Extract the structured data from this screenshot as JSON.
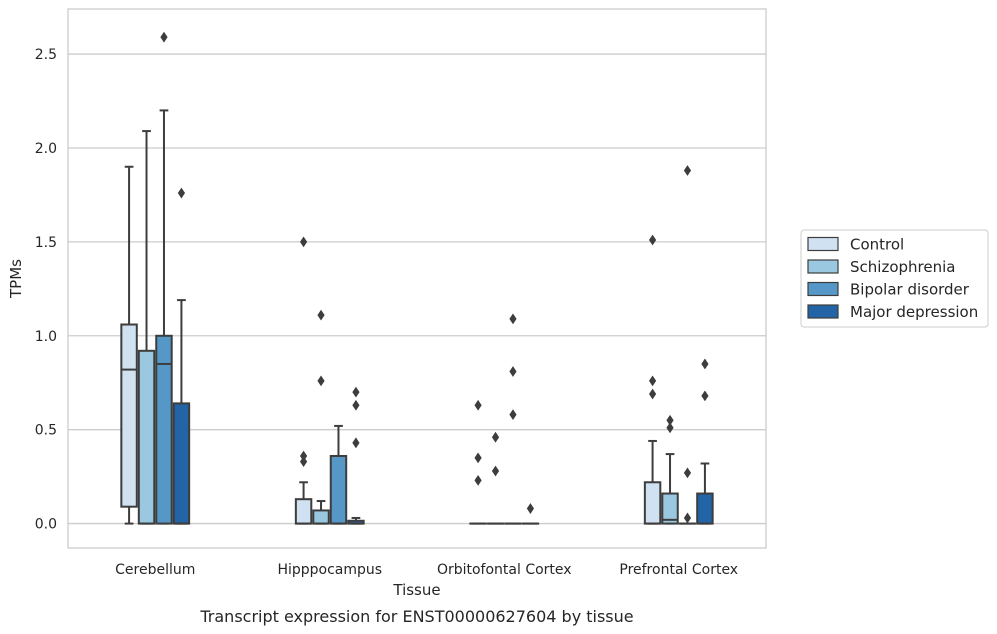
{
  "chart_data": {
    "type": "box",
    "xlabel": "Tissue",
    "ylabel": "TPMs",
    "caption": "Transcript expression for ENST00000627604 by tissue",
    "ylim": [
      -0.13,
      2.74
    ],
    "yticks": [
      0.0,
      0.5,
      1.0,
      1.5,
      2.0,
      2.5
    ],
    "ytick_labels": [
      "0.0",
      "0.5",
      "1.0",
      "1.5",
      "2.0",
      "2.5"
    ],
    "grid": "horizontal",
    "legend_position": "right",
    "categories": [
      "Cerebellum",
      "Hipppocampus",
      "Orbitofontal Cortex",
      "Prefrontal Cortex"
    ],
    "series": [
      {
        "name": "Control",
        "color": "#d0e1f2",
        "boxes": [
          {
            "q1": 0.09,
            "median": 0.82,
            "q3": 1.06,
            "whisker_low": 0.0,
            "whisker_high": 1.9,
            "outliers": []
          },
          {
            "q1": 0.0,
            "median": 0.0,
            "q3": 0.13,
            "whisker_low": 0.0,
            "whisker_high": 0.22,
            "outliers": [
              1.5,
              0.36,
              0.33
            ]
          },
          {
            "q1": 0.0,
            "median": 0.0,
            "q3": 0.0,
            "whisker_low": 0.0,
            "whisker_high": 0.0,
            "outliers": [
              0.63,
              0.35,
              0.23
            ]
          },
          {
            "q1": 0.0,
            "median": 0.0,
            "q3": 0.22,
            "whisker_low": 0.0,
            "whisker_high": 0.44,
            "outliers": [
              1.51,
              0.76,
              0.69
            ]
          }
        ]
      },
      {
        "name": "Schizophrenia",
        "color": "#9ac8e0",
        "boxes": [
          {
            "q1": 0.0,
            "median": 0.0,
            "q3": 0.92,
            "whisker_low": 0.0,
            "whisker_high": 2.09,
            "outliers": []
          },
          {
            "q1": 0.0,
            "median": 0.0,
            "q3": 0.07,
            "whisker_low": 0.0,
            "whisker_high": 0.12,
            "outliers": [
              1.11,
              0.76
            ]
          },
          {
            "q1": 0.0,
            "median": 0.0,
            "q3": 0.0,
            "whisker_low": 0.0,
            "whisker_high": 0.0,
            "outliers": [
              0.46,
              0.28
            ]
          },
          {
            "q1": 0.0,
            "median": 0.02,
            "q3": 0.16,
            "whisker_low": 0.0,
            "whisker_high": 0.37,
            "outliers": [
              0.55,
              0.51
            ]
          }
        ]
      },
      {
        "name": "Bipolar disorder",
        "color": "#5597c7",
        "boxes": [
          {
            "q1": 0.0,
            "median": 0.85,
            "q3": 1.0,
            "whisker_low": 0.0,
            "whisker_high": 2.2,
            "outliers": [
              2.59
            ]
          },
          {
            "q1": 0.0,
            "median": 0.0,
            "q3": 0.36,
            "whisker_low": 0.0,
            "whisker_high": 0.52,
            "outliers": []
          },
          {
            "q1": 0.0,
            "median": 0.0,
            "q3": 0.0,
            "whisker_low": 0.0,
            "whisker_high": 0.0,
            "outliers": [
              1.09,
              0.81,
              0.58
            ]
          },
          {
            "q1": 0.0,
            "median": 0.0,
            "q3": 0.0,
            "whisker_low": 0.0,
            "whisker_high": 0.0,
            "outliers": [
              1.88,
              0.27,
              0.03
            ]
          }
        ]
      },
      {
        "name": "Major depression",
        "color": "#2364a6",
        "boxes": [
          {
            "q1": 0.0,
            "median": 0.0,
            "q3": 0.64,
            "whisker_low": 0.0,
            "whisker_high": 1.19,
            "outliers": [
              1.76
            ]
          },
          {
            "q1": 0.0,
            "median": 0.0,
            "q3": 0.015,
            "whisker_low": 0.0,
            "whisker_high": 0.03,
            "outliers": [
              0.7,
              0.63,
              0.43
            ]
          },
          {
            "q1": 0.0,
            "median": 0.0,
            "q3": 0.0,
            "whisker_low": 0.0,
            "whisker_high": 0.0,
            "outliers": [
              0.08
            ]
          },
          {
            "q1": 0.0,
            "median": 0.0,
            "q3": 0.16,
            "whisker_low": 0.0,
            "whisker_high": 0.32,
            "outliers": [
              0.85,
              0.68
            ]
          }
        ]
      }
    ]
  }
}
